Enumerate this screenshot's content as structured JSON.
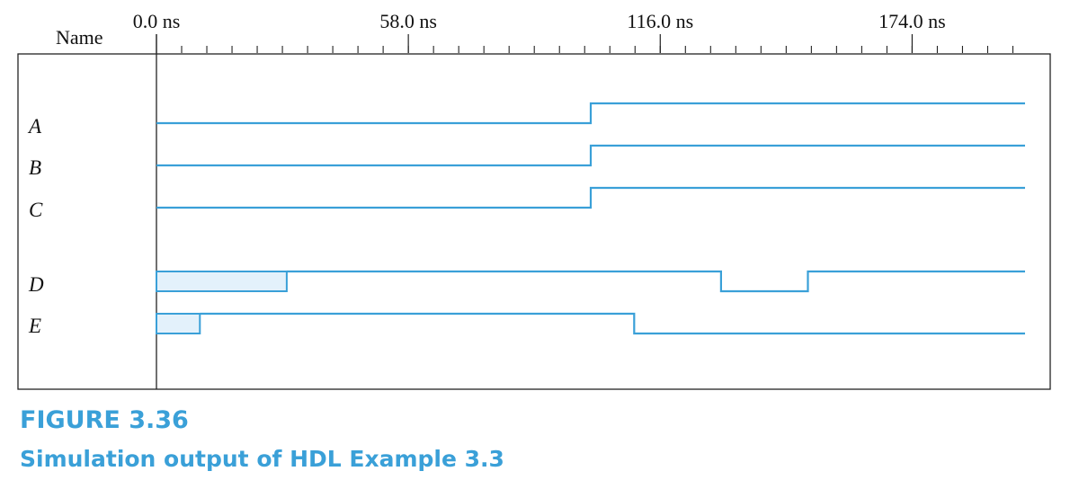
{
  "header": {
    "name_label": "Name"
  },
  "time_axis": {
    "ticks": [
      {
        "t": 0,
        "label": "0.0 ns"
      },
      {
        "t": 58,
        "label": "58.0 ns"
      },
      {
        "t": 116,
        "label": "116.0 ns"
      },
      {
        "t": 174,
        "label": "174.0 ns"
      }
    ],
    "minor_step_ns": 5.8,
    "range_ns": [
      0,
      200
    ]
  },
  "signals": [
    {
      "name": "A",
      "unknown_until": null,
      "transitions": [
        [
          0,
          0
        ],
        [
          100,
          1
        ]
      ]
    },
    {
      "name": "B",
      "unknown_until": null,
      "transitions": [
        [
          0,
          0
        ],
        [
          100,
          1
        ]
      ]
    },
    {
      "name": "C",
      "unknown_until": null,
      "transitions": [
        [
          0,
          0
        ],
        [
          100,
          1
        ]
      ]
    },
    {
      "name": "D",
      "unknown_until": 30,
      "transitions": [
        [
          30,
          1
        ],
        [
          130,
          0
        ],
        [
          150,
          1
        ]
      ]
    },
    {
      "name": "E",
      "unknown_until": 10,
      "transitions": [
        [
          10,
          1
        ],
        [
          110,
          0
        ]
      ]
    }
  ],
  "colors": {
    "wave": "#3aa0d8",
    "unknown_fill": "#e3f1fb",
    "caption": "#3aa0d8",
    "frame": "#222222"
  },
  "caption": {
    "label": "FIGURE 3.36",
    "title": "Simulation output of HDL Example 3.3"
  }
}
